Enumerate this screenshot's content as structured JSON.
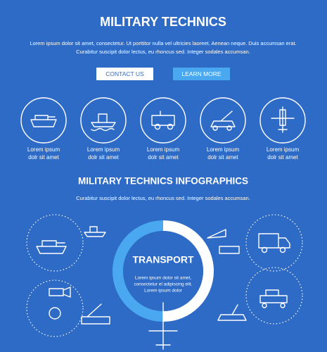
{
  "header": {
    "title": "MILITARY TECHNICS",
    "text": [
      "Lorem ipsum dolor sit amet, consectetur. Ut porttitor nulla vel ultricies laoreet. Aenean neque. Duis accumsan erat.",
      "Curabitur suscipit dolor lectus, eu rhoncus sed. Integer sodales accumsan."
    ]
  },
  "buttons": [
    "CONTACT US",
    "LEARN MORE"
  ],
  "items": [
    {
      "label": [
        "Lorem ipsum",
        "dolr sit amet"
      ]
    },
    {
      "label": [
        "Lorem ipsum",
        "dolr sit amet"
      ]
    },
    {
      "label": [
        "Lorem ipsum",
        "dolr sit amet"
      ]
    },
    {
      "label": [
        "Lorem ipsum",
        "dolr sit amet"
      ]
    },
    {
      "label": [
        "Lorem ipsum",
        "dolr sit amet"
      ]
    }
  ],
  "infographic": {
    "title": "MILITARY TECHNICS INFOGRAPHICS",
    "subtitle": "Curabitur suscipit dolor lectus, eu rhoncus sed. Integer sodales accumsan.",
    "center_title": "TRANSPORT",
    "center_text": [
      "Lorem ipsum dolor sit amet,",
      "consectetur el adipiscing elit.",
      "Lorem ipsum dolor"
    ]
  }
}
